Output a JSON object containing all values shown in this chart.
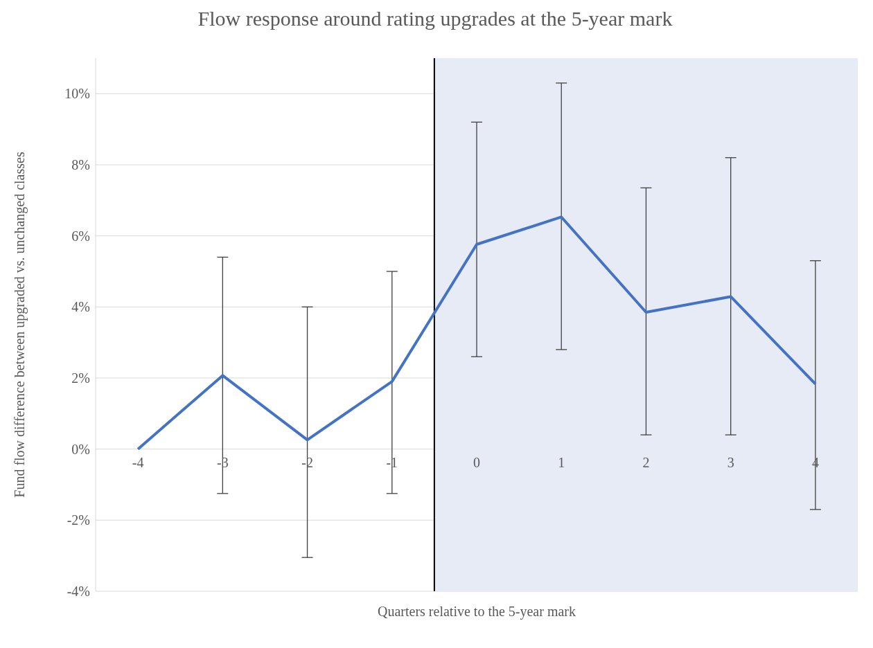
{
  "chart_data": {
    "type": "line",
    "title": "Flow response around rating upgrades at the 5-year mark",
    "xlabel": "Quarters relative to the 5-year mark",
    "ylabel": "Fund flow difference between upgraded vs. unchanged classes",
    "x": [
      -4,
      -3,
      -2,
      -1,
      0,
      1,
      2,
      3,
      4
    ],
    "series": [
      {
        "color": "#4472c4",
        "values": [
          0,
          2.07,
          0.26,
          1.9,
          5.76,
          6.53,
          3.85,
          4.29,
          1.83
        ],
        "errors": [
          null,
          [
            -1.25,
            5.4
          ],
          [
            -3.05,
            4.0
          ],
          [
            -1.25,
            5.0
          ],
          [
            2.6,
            9.2
          ],
          [
            2.8,
            10.3
          ],
          [
            0.4,
            7.35
          ],
          [
            0.4,
            8.2
          ],
          [
            -1.7,
            5.3
          ]
        ]
      }
    ],
    "xlim": [
      -4.5,
      4.5
    ],
    "xticks": [
      -4,
      -3,
      -2,
      -1,
      0,
      1,
      2,
      3,
      4
    ],
    "ylim": [
      -4,
      11
    ],
    "yticks": [
      {
        "value": -4,
        "label": "-4%"
      },
      {
        "value": -2,
        "label": "-2%"
      },
      {
        "value": 0,
        "label": "0%"
      },
      {
        "value": 2,
        "label": "2%"
      },
      {
        "value": 4,
        "label": "4%"
      },
      {
        "value": 6,
        "label": "6%"
      },
      {
        "value": 8,
        "label": "8%"
      },
      {
        "value": 10,
        "label": "10%"
      }
    ],
    "ref_lines": [
      {
        "axis": "x",
        "value": -0.5,
        "color": "#000000"
      }
    ],
    "bands": [
      {
        "axis": "x",
        "from": -0.5,
        "to": 4.5,
        "color": "#e6ebf6"
      }
    ],
    "grid": "y",
    "legend": false,
    "marker": "none",
    "line_style": "solid"
  }
}
